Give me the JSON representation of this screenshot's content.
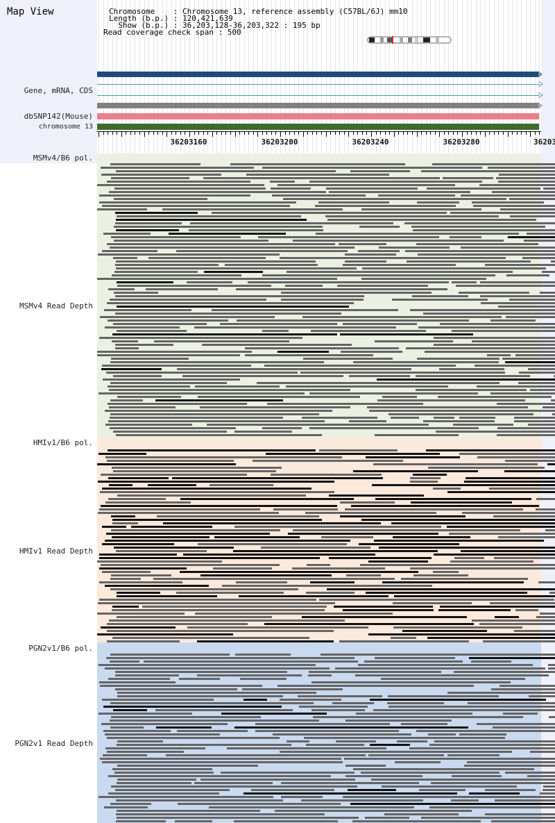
{
  "map_view_title": "Map View",
  "info": {
    "chromosome_line": "Chromosome    : Chromosome 13, reference assembly (C57BL/6J) mm10",
    "length_line": "Length (b.p.) : 120,421,639",
    "show_line": "  Show (b.p.) : 36,203,128-36,203,322 : 195 bp",
    "coverage_line": "Read coverage check span : 500"
  },
  "tracks": {
    "gene_label": "Gene, mRNA, CDS",
    "snp_label": "dbSNP142(Mouse)",
    "chrom_label": "chromosome 13"
  },
  "ruler": {
    "ticks": [
      "36203160",
      "36203200",
      "36203240",
      "36203280",
      "36203"
    ]
  },
  "strains": [
    {
      "pol_label": "MSMv4/B6 pol.",
      "depth_label": "MSMv4 Read Depth"
    },
    {
      "pol_label": "HMIv1/B6 pol.",
      "depth_label": "HMIv1 Read Depth"
    },
    {
      "pol_label": "PGN2v1/B6 pol.",
      "depth_label": "PGN2v1 Read Depth"
    }
  ],
  "colors": {
    "header_bg": "#f0f0fa",
    "gene_track": "#1f4a7a",
    "snp_track": "#e8808c",
    "chrom_track": "#3e6a2c",
    "msm_bg": "#ecf0e2",
    "hmi_bg": "#fbe9dc",
    "pgn_bg": "#c9d9ef",
    "read_gray": "#646464",
    "read_black": "#111111"
  }
}
